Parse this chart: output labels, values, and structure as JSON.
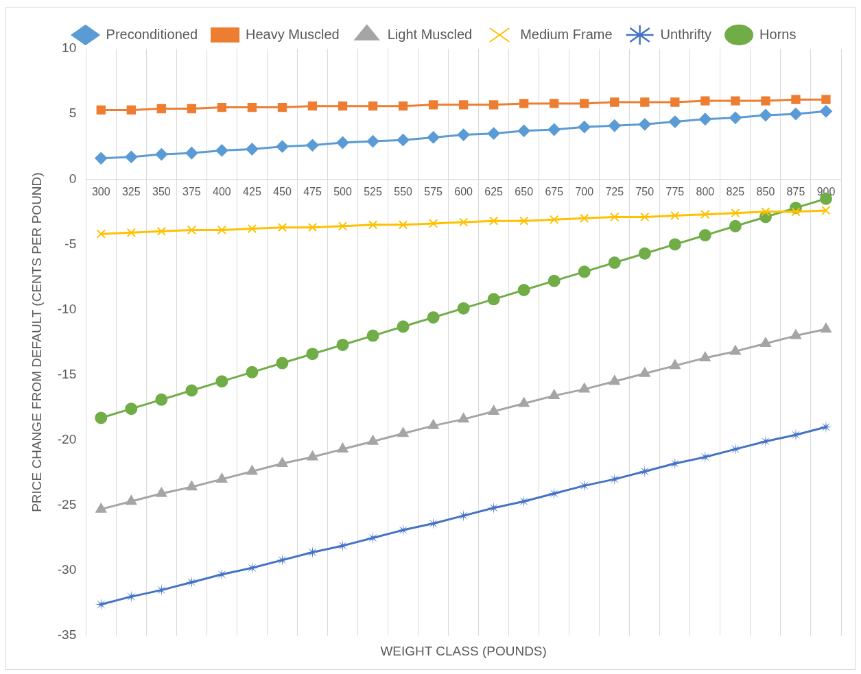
{
  "chart_data": {
    "type": "line",
    "xlabel": "WEIGHT CLASS (POUNDS)",
    "ylabel": "PRICE CHANGE FROM DEFAULT (CENTS PER POUND)",
    "categories": [
      "300",
      "325",
      "350",
      "375",
      "400",
      "425",
      "450",
      "475",
      "500",
      "525",
      "550",
      "575",
      "600",
      "625",
      "650",
      "675",
      "700",
      "725",
      "750",
      "775",
      "800",
      "825",
      "850",
      "875",
      "900"
    ],
    "ylim": [
      -35,
      10
    ],
    "yticks": [
      -35,
      -30,
      -25,
      -20,
      -15,
      -10,
      -5,
      0,
      5,
      10
    ],
    "grid": "x",
    "legend": "top",
    "line_style": "solid",
    "series": [
      {
        "name": "Preconditioned",
        "color": "#5b9bd5",
        "marker": "diamond",
        "values": [
          1.6,
          1.7,
          1.9,
          2.0,
          2.2,
          2.3,
          2.5,
          2.6,
          2.8,
          2.9,
          3.0,
          3.2,
          3.4,
          3.5,
          3.7,
          3.8,
          4.0,
          4.1,
          4.2,
          4.4,
          4.6,
          4.7,
          4.9,
          5.0,
          5.2
        ]
      },
      {
        "name": "Heavy Muscled",
        "color": "#ed7d31",
        "marker": "square",
        "values": [
          5.3,
          5.3,
          5.4,
          5.4,
          5.5,
          5.5,
          5.5,
          5.6,
          5.6,
          5.6,
          5.6,
          5.7,
          5.7,
          5.7,
          5.8,
          5.8,
          5.8,
          5.9,
          5.9,
          5.9,
          6.0,
          6.0,
          6.0,
          6.1,
          6.1
        ]
      },
      {
        "name": "Light Muscled",
        "color": "#a5a5a5",
        "marker": "triangle",
        "values": [
          -25.3,
          -24.7,
          -24.1,
          -23.6,
          -23.0,
          -22.4,
          -21.8,
          -21.3,
          -20.7,
          -20.1,
          -19.5,
          -18.9,
          -18.4,
          -17.8,
          -17.2,
          -16.6,
          -16.1,
          -15.5,
          -14.9,
          -14.3,
          -13.7,
          -13.2,
          -12.6,
          -12.0,
          -11.5
        ]
      },
      {
        "name": "Medium Frame",
        "color": "#ffc000",
        "marker": "cross",
        "values": [
          -4.2,
          -4.1,
          -4.0,
          -3.9,
          -3.9,
          -3.8,
          -3.7,
          -3.7,
          -3.6,
          -3.5,
          -3.5,
          -3.4,
          -3.3,
          -3.2,
          -3.2,
          -3.1,
          -3.0,
          -2.9,
          -2.9,
          -2.8,
          -2.7,
          -2.6,
          -2.5,
          -2.5,
          -2.4
        ]
      },
      {
        "name": "Unthrifty",
        "color": "#4472c4",
        "marker": "star",
        "values": [
          -32.6,
          -32.0,
          -31.5,
          -30.9,
          -30.3,
          -29.8,
          -29.2,
          -28.6,
          -28.1,
          -27.5,
          -26.9,
          -26.4,
          -25.8,
          -25.2,
          -24.7,
          -24.1,
          -23.5,
          -23.0,
          -22.4,
          -21.8,
          -21.3,
          -20.7,
          -20.1,
          -19.6,
          -19.0
        ]
      },
      {
        "name": "Horns",
        "color": "#70ad47",
        "marker": "circle",
        "values": [
          -18.3,
          -17.6,
          -16.9,
          -16.2,
          -15.5,
          -14.8,
          -14.1,
          -13.4,
          -12.7,
          -12.0,
          -11.3,
          -10.6,
          -9.9,
          -9.2,
          -8.5,
          -7.8,
          -7.1,
          -6.4,
          -5.7,
          -5.0,
          -4.3,
          -3.6,
          -2.9,
          -2.2,
          -1.5
        ]
      }
    ]
  }
}
